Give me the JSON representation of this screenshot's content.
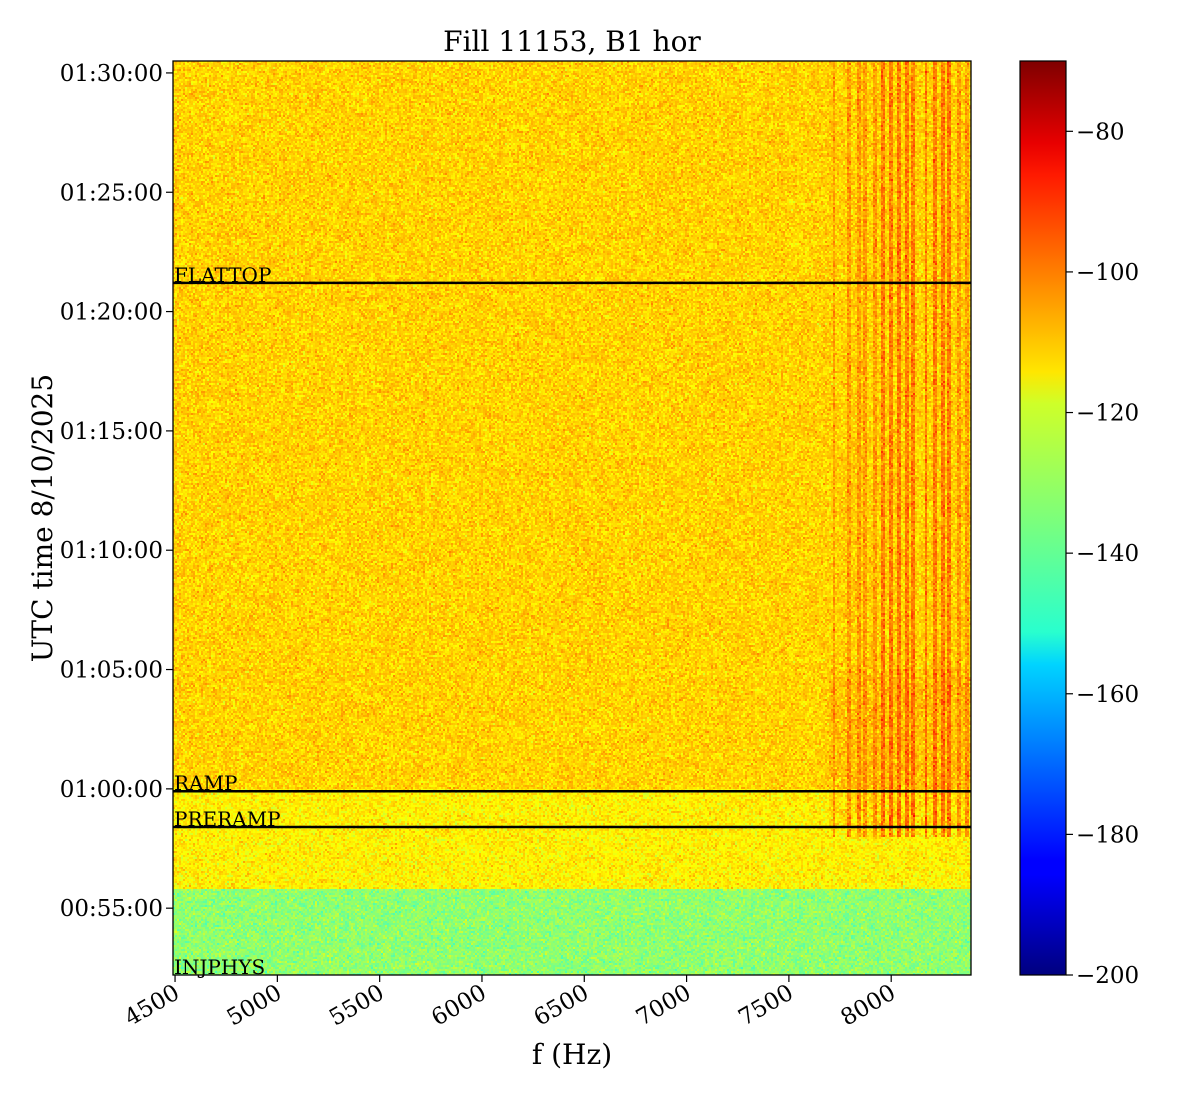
{
  "chart_data": {
    "type": "heatmap",
    "title": "Fill 11153, B1 hor",
    "xlabel": "f (Hz)",
    "ylabel": "UTC time 8/10/2025",
    "xlim": [
      4490,
      8390
    ],
    "ylim_minutes_after_0050": [
      2.2,
      40.5
    ],
    "x_ticks": [
      {
        "value": 4500,
        "label": "4500"
      },
      {
        "value": 5000,
        "label": "5000"
      },
      {
        "value": 5500,
        "label": "5500"
      },
      {
        "value": 6000,
        "label": "6000"
      },
      {
        "value": 6500,
        "label": "6500"
      },
      {
        "value": 7000,
        "label": "7000"
      },
      {
        "value": 7500,
        "label": "7500"
      },
      {
        "value": 8000,
        "label": "8000"
      }
    ],
    "y_ticks": [
      {
        "value": 5,
        "label": "00:55:00"
      },
      {
        "value": 10,
        "label": "01:00:00"
      },
      {
        "value": 15,
        "label": "01:05:00"
      },
      {
        "value": 20,
        "label": "01:10:00"
      },
      {
        "value": 25,
        "label": "01:15:00"
      },
      {
        "value": 30,
        "label": "01:20:00"
      },
      {
        "value": 35,
        "label": "01:25:00"
      },
      {
        "value": 40,
        "label": "01:30:00"
      }
    ],
    "colorbar": {
      "colormap": "jet",
      "min": -200,
      "max": -70,
      "ticks": [
        {
          "value": -80,
          "label": "−80"
        },
        {
          "value": -100,
          "label": "−100"
        },
        {
          "value": -120,
          "label": "−120"
        },
        {
          "value": -140,
          "label": "−140"
        },
        {
          "value": -160,
          "label": "−160"
        },
        {
          "value": -180,
          "label": "−180"
        },
        {
          "value": -200,
          "label": "−200"
        }
      ]
    },
    "phases": [
      {
        "name": "INJPHYS",
        "time": 2.2,
        "show_line": false
      },
      {
        "name": "PRERAMP",
        "time": 8.4,
        "show_line": true
      },
      {
        "name": "RAMP",
        "time": 9.9,
        "show_line": true
      },
      {
        "name": "FLATTOP",
        "time": 31.2,
        "show_line": true
      }
    ],
    "regions": [
      {
        "description": "before PRERAMP",
        "t_start": 2.2,
        "t_end": 5.8,
        "level_db": -133
      },
      {
        "description": "preramp and later",
        "t_start": 5.8,
        "t_end": 40.5,
        "level_db": -117
      },
      {
        "description": "after 01:00 (general)",
        "t_start": 10.0,
        "t_end": 40.5,
        "level_db": -113
      }
    ],
    "spectral_lines_hz": [
      7720,
      7790,
      7840,
      7870,
      7920,
      7960,
      8000,
      8040,
      8075,
      8110,
      8170,
      8215,
      8250,
      8280,
      8330,
      8370
    ],
    "line_level_db": -102
  }
}
